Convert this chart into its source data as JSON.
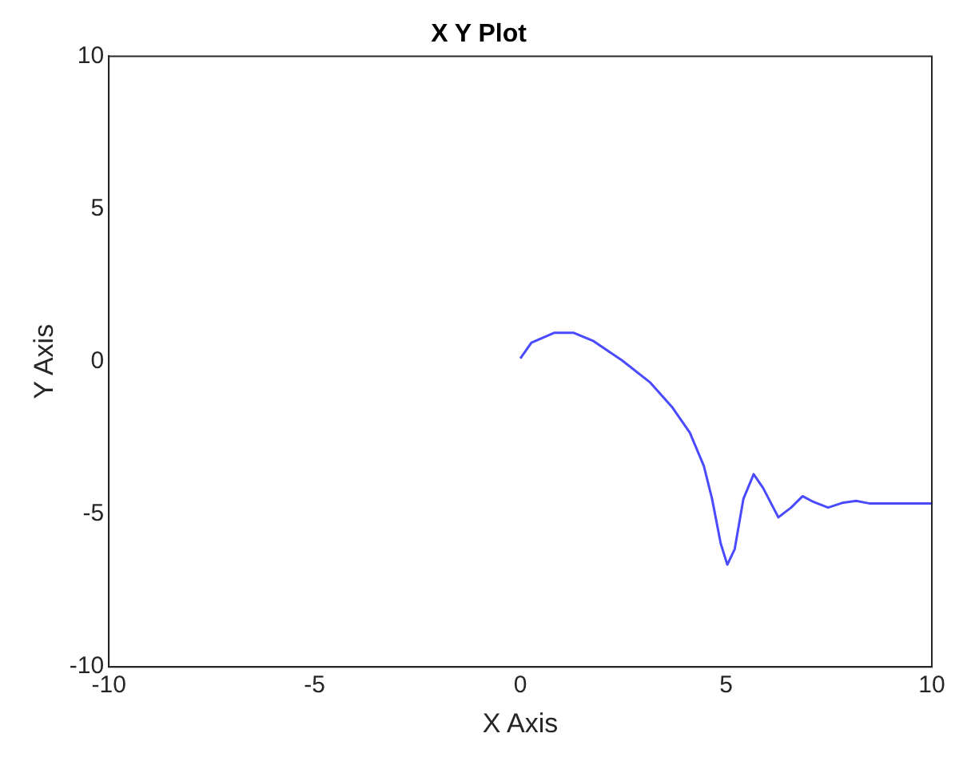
{
  "chart_data": {
    "type": "line",
    "title": "X Y Plot",
    "xlabel": "X Axis",
    "ylabel": "Y Axis",
    "xlim": [
      -10,
      10
    ],
    "ylim": [
      -10,
      10
    ],
    "xticks": [
      -10,
      -5,
      0,
      5,
      10
    ],
    "yticks": [
      -10,
      -5,
      0,
      5,
      10
    ],
    "grid": false,
    "legend": false,
    "marker": "none",
    "line_style": "solid",
    "series": [
      {
        "color": "#4a4aff",
        "x": [
          0,
          0.27,
          0.82,
          1.3,
          1.78,
          2.47,
          3.16,
          3.7,
          4.12,
          4.46,
          4.66,
          4.87,
          5.03,
          5.21,
          5.42,
          5.67,
          5.9,
          6.27,
          6.58,
          6.86,
          7.13,
          7.48,
          7.82,
          8.16,
          8.5,
          10
        ],
        "values": [
          0.1,
          0.62,
          0.94,
          0.94,
          0.67,
          0.04,
          -0.69,
          -1.51,
          -2.33,
          -3.42,
          -4.5,
          -5.96,
          -6.65,
          -6.14,
          -4.5,
          -3.69,
          -4.14,
          -5.1,
          -4.78,
          -4.41,
          -4.6,
          -4.78,
          -4.63,
          -4.56,
          -4.65,
          -4.65
        ]
      }
    ]
  }
}
